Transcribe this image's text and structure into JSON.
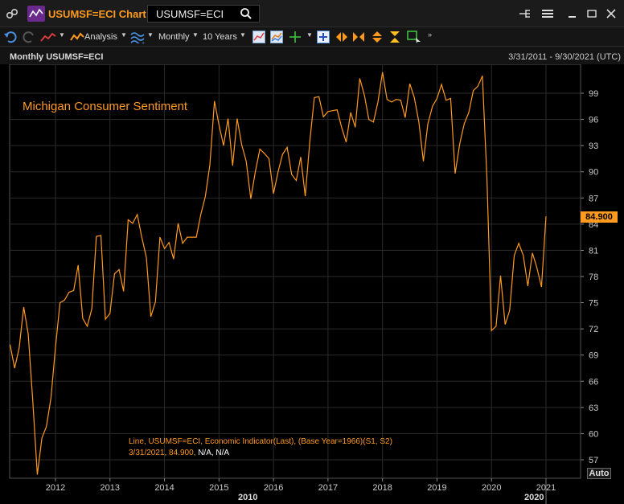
{
  "window": {
    "title": "USUMSF=ECI Chart",
    "search_value": "USUMSF=ECI"
  },
  "toolbar": {
    "analysis_label": "Analysis",
    "interval_label": "Monthly",
    "range_label": "10 Years"
  },
  "chart_header": {
    "title": "Monthly USUMSF=ECI",
    "date_range": "3/31/2011 - 9/30/2021 (UTC)"
  },
  "legend": {
    "series_name": "Michigan Consumer Sentiment",
    "info_line1": "Line, USUMSF=ECI, Economic Indicator(Last), (Base Year=1966)(S1, S2)",
    "info_line2_prefix": "3/31/2021, 84.900, ",
    "info_line2_na": "N/A, N/A"
  },
  "last_value_badge": "84.900",
  "auto_button": "Auto",
  "colors": {
    "series": "#ff9a1f",
    "background": "#000000",
    "grid": "#2b2b2b"
  },
  "chart_data": {
    "type": "line",
    "title": "Michigan Consumer Sentiment",
    "y_ticks": [
      57,
      60,
      63,
      66,
      69,
      72,
      75,
      78,
      81,
      84,
      87,
      90,
      93,
      96,
      99
    ],
    "x_ticks": [
      "2012",
      "2013",
      "2014",
      "2015",
      "2016",
      "2017",
      "2018",
      "2019",
      "2020",
      "2021"
    ],
    "x_sublabels": [
      "2010",
      "2020"
    ],
    "grid": true,
    "series": [
      {
        "x_start": "2011-03",
        "frequency": "monthly",
        "values": [
          70.2,
          67.5,
          69.8,
          74.5,
          71.4,
          63.7,
          55.3,
          59.5,
          60.8,
          64.1,
          69.9,
          75.0,
          75.3,
          76.2,
          76.4,
          79.3,
          73.2,
          72.3,
          74.3,
          82.6,
          82.7,
          73.1,
          73.8,
          78.3,
          78.8,
          76.3,
          84.5,
          84.1,
          85.1,
          82.5,
          80.2,
          73.4,
          75.1,
          82.5,
          81.2,
          81.9,
          80.0,
          84.1,
          81.8,
          82.5,
          82.5,
          82.5,
          85.1,
          87.2,
          90.8,
          98.1,
          95.4,
          93.0,
          96.1,
          90.7,
          96.1,
          93.1,
          91.2,
          86.9,
          90.0,
          92.6,
          92.1,
          91.5,
          87.5,
          90.0,
          92.0,
          92.8,
          89.7,
          89.0,
          91.7,
          87.2,
          93.5,
          98.5,
          98.6,
          96.3,
          96.9,
          97.0,
          97.1,
          95.1,
          93.4,
          96.8,
          95.1,
          100.7,
          98.8,
          96.0,
          95.7,
          98.0,
          101.4,
          98.3,
          98.0,
          98.3,
          98.2,
          96.2,
          100.1,
          98.5,
          95.7,
          91.2,
          95.5,
          97.5,
          98.4,
          100.0,
          98.2,
          98.4,
          89.8,
          93.2,
          95.5,
          96.8,
          99.3,
          99.8,
          101.0,
          89.1,
          71.8,
          72.3,
          78.1,
          72.5,
          74.1,
          80.4,
          81.8,
          80.4,
          76.9,
          80.7,
          79.0,
          76.8,
          84.9
        ]
      }
    ]
  }
}
